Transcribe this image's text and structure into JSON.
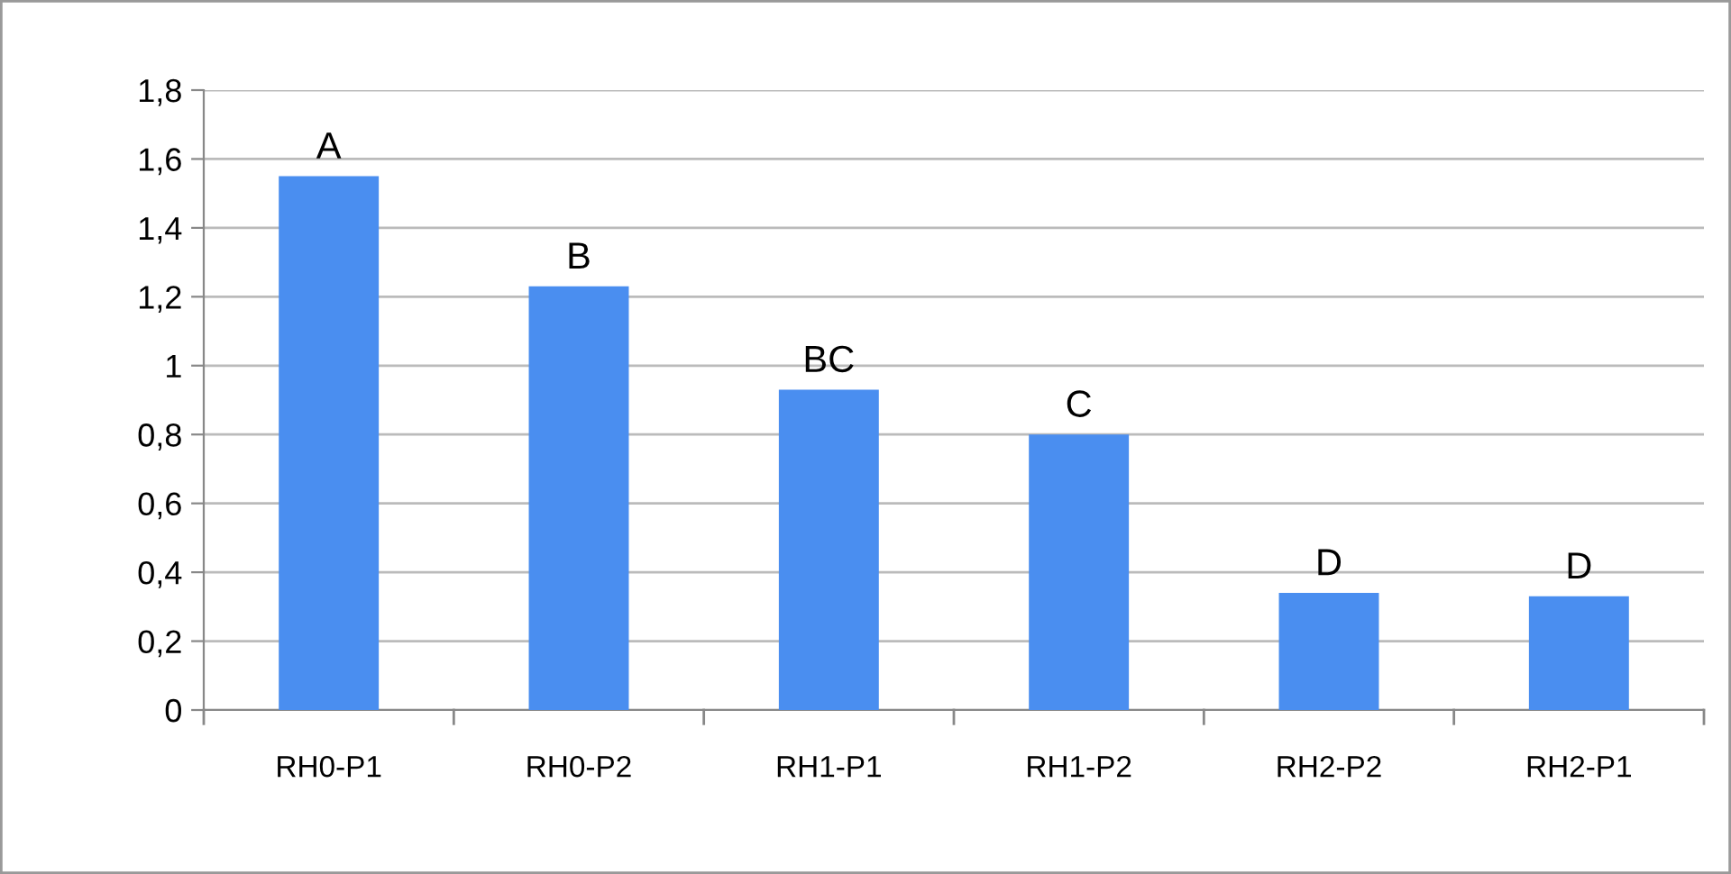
{
  "chart_data": {
    "type": "bar",
    "categories": [
      "RH0-P1",
      "RH0-P2",
      "RH1-P1",
      "RH1-P2",
      "RH2-P2",
      "RH2-P1"
    ],
    "values": [
      1.55,
      1.23,
      0.93,
      0.8,
      0.34,
      0.33
    ],
    "color": "#4a8ef0",
    "ylim": [
      0,
      1.8
    ],
    "yticks": [
      0,
      {
        "value": 0.2,
        "label": "0,2"
      },
      {
        "value": 0.4,
        "label": "0,4"
      },
      {
        "value": 0.6,
        "label": "0,6"
      },
      {
        "value": 0.8,
        "label": "0,8"
      },
      1,
      {
        "value": 1.2,
        "label": "1,2"
      },
      {
        "value": 1.4,
        "label": "1,4"
      },
      {
        "value": 1.6,
        "label": "1,6"
      },
      {
        "value": 1.8,
        "label": "1,8"
      }
    ],
    "grid": "y",
    "annotations": [
      {
        "text": "A",
        "x": "RH0-P1",
        "y": 1.55
      },
      {
        "text": "B",
        "x": "RH0-P2",
        "y": 1.23
      },
      {
        "text": "BC",
        "x": "RH1-P1",
        "y": 0.93
      },
      {
        "text": "C",
        "x": "RH1-P2",
        "y": 0.8
      },
      {
        "text": "D",
        "x": "RH2-P2",
        "y": 0.34
      },
      {
        "text": "D",
        "x": "RH2-P1",
        "y": 0.33
      }
    ]
  }
}
